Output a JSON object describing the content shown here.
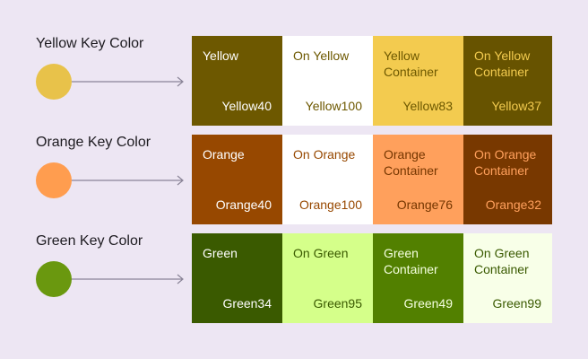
{
  "groups": [
    {
      "key_label": "Yellow Key Color",
      "key_color": "#e8c24a",
      "swatches": [
        {
          "name": "Yellow",
          "tone": "Yellow40",
          "bg": "#6d5800",
          "fg": "#ffffff"
        },
        {
          "name": "On Yellow",
          "tone": "Yellow100",
          "bg": "#ffffff",
          "fg": "#6d5800"
        },
        {
          "name": "Yellow Container",
          "tone": "Yellow83",
          "bg": "#f3cb4f",
          "fg": "#6d5800"
        },
        {
          "name": "On Yellow Container",
          "tone": "Yellow37",
          "bg": "#675300",
          "fg": "#f3cb4f"
        }
      ]
    },
    {
      "key_label": "Orange Key Color",
      "key_color": "#ff9d4f",
      "swatches": [
        {
          "name": "Orange",
          "tone": "Orange40",
          "bg": "#974800",
          "fg": "#ffffff"
        },
        {
          "name": "On Orange",
          "tone": "Orange100",
          "bg": "#ffffff",
          "fg": "#974800"
        },
        {
          "name": "Orange Container",
          "tone": "Orange76",
          "bg": "#ffa05c",
          "fg": "#753600"
        },
        {
          "name": "On Orange Container",
          "tone": "Orange32",
          "bg": "#783800",
          "fg": "#ffa05c"
        }
      ]
    },
    {
      "key_label": "Green Key Color",
      "key_color": "#6a980f",
      "swatches": [
        {
          "name": "Green",
          "tone": "Green34",
          "bg": "#3a5a00",
          "fg": "#ffffff"
        },
        {
          "name": "On Green",
          "tone": "Green95",
          "bg": "#d5ff8a",
          "fg": "#3a5a00"
        },
        {
          "name": "Green Container",
          "tone": "Green49",
          "bg": "#528000",
          "fg": "#f5ffe0"
        },
        {
          "name": "On Green Container",
          "tone": "Green99",
          "bg": "#f8ffe8",
          "fg": "#3a5a00"
        }
      ]
    }
  ]
}
